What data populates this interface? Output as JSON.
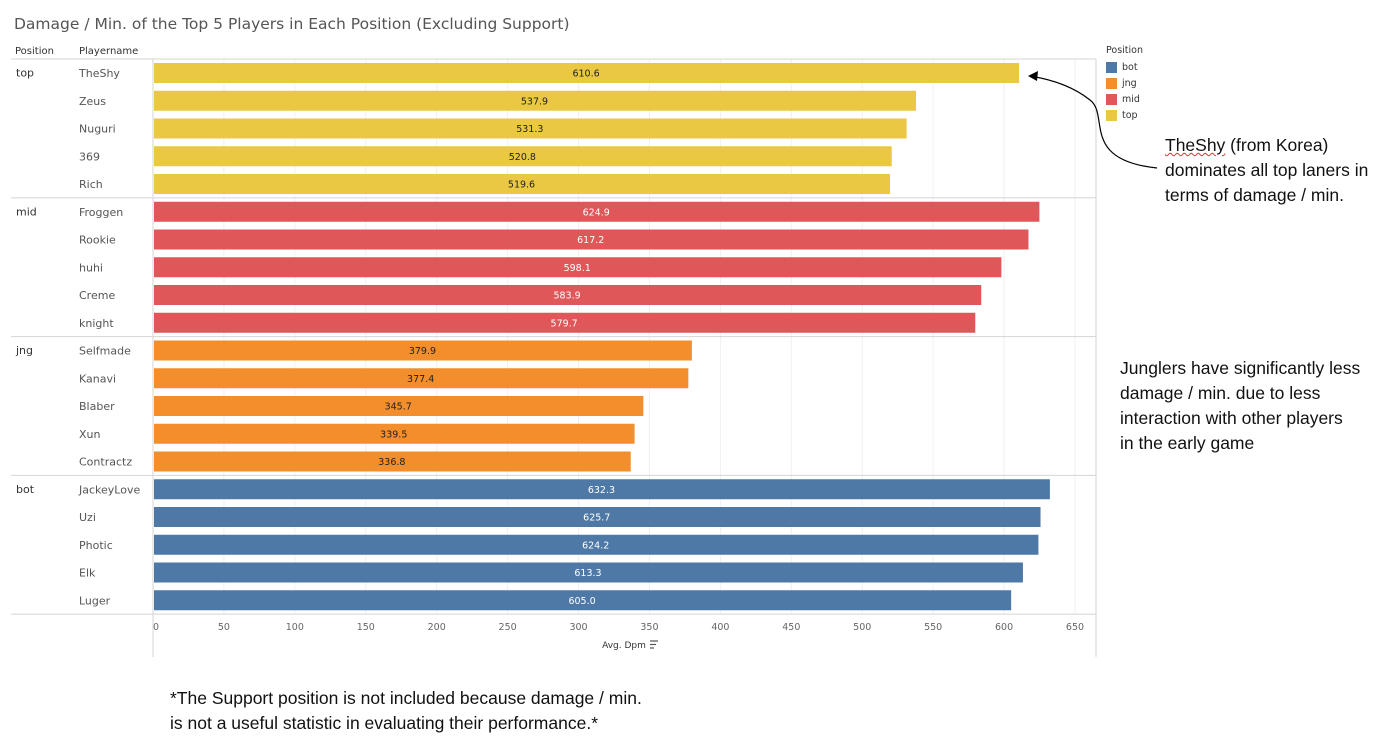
{
  "title": "Damage / Min. of the Top 5 Players in Each Position (Excluding Support)",
  "headers": {
    "position": "Position",
    "playername": "Playername"
  },
  "colors": {
    "top": "#ebc843",
    "mid": "#e05759",
    "jng": "#f28e2b",
    "bot": "#4e79a7"
  },
  "legend": {
    "title": "Position",
    "items": [
      {
        "label": "bot",
        "color": "#4e79a7"
      },
      {
        "label": "jng",
        "color": "#f28e2b"
      },
      {
        "label": "mid",
        "color": "#e05759"
      },
      {
        "label": "top",
        "color": "#ebc843"
      }
    ]
  },
  "chart_data": {
    "type": "bar",
    "orientation": "horizontal",
    "xlabel": "Avg. Dpm",
    "xlim": [
      0,
      660
    ],
    "xticks": [
      0,
      50,
      100,
      150,
      200,
      250,
      300,
      350,
      400,
      450,
      500,
      550,
      600,
      650
    ],
    "groups": [
      {
        "position": "top",
        "players": [
          {
            "name": "TheShy",
            "value": 610.6,
            "label": "610.6"
          },
          {
            "name": "Zeus",
            "value": 537.9,
            "label": "537.9"
          },
          {
            "name": "Nuguri",
            "value": 531.3,
            "label": "531.3"
          },
          {
            "name": "369",
            "value": 520.8,
            "label": "520.8"
          },
          {
            "name": "Rich",
            "value": 519.6,
            "label": "519.6"
          }
        ]
      },
      {
        "position": "mid",
        "players": [
          {
            "name": "Froggen",
            "value": 624.9,
            "label": "624.9"
          },
          {
            "name": "Rookie",
            "value": 617.2,
            "label": "617.2"
          },
          {
            "name": "huhi",
            "value": 598.1,
            "label": "598.1"
          },
          {
            "name": "Creme",
            "value": 583.9,
            "label": "583.9"
          },
          {
            "name": "knight",
            "value": 579.7,
            "label": "579.7"
          }
        ]
      },
      {
        "position": "jng",
        "players": [
          {
            "name": "Selfmade",
            "value": 379.9,
            "label": "379.9"
          },
          {
            "name": "Kanavi",
            "value": 377.4,
            "label": "377.4"
          },
          {
            "name": "Blaber",
            "value": 345.7,
            "label": "345.7"
          },
          {
            "name": "Xun",
            "value": 339.5,
            "label": "339.5"
          },
          {
            "name": "Contractz",
            "value": 336.8,
            "label": "336.8"
          }
        ]
      },
      {
        "position": "bot",
        "players": [
          {
            "name": "JackeyLove",
            "value": 632.3,
            "label": "632.3"
          },
          {
            "name": "Uzi",
            "value": 625.7,
            "label": "625.7"
          },
          {
            "name": "Photic",
            "value": 624.2,
            "label": "624.2"
          },
          {
            "name": "Elk",
            "value": 613.3,
            "label": "613.3"
          },
          {
            "name": "Luger",
            "value": 605.0,
            "label": "605.0"
          }
        ]
      }
    ]
  },
  "annotations": {
    "theshy": {
      "underlined": "TheShy",
      "line1_rest": " (from Korea)",
      "line2": "dominates all top laners in",
      "line3": "terms of damage / min."
    },
    "junglers": {
      "line1": "Junglers have significantly less",
      "line2": "damage / min. due to less",
      "line3": "interaction with other players",
      "line4": "in the early game"
    }
  },
  "footnote": {
    "line1": "*The Support position is not included because damage / min.",
    "line2": "is not a useful statistic in evaluating their performance.*"
  }
}
